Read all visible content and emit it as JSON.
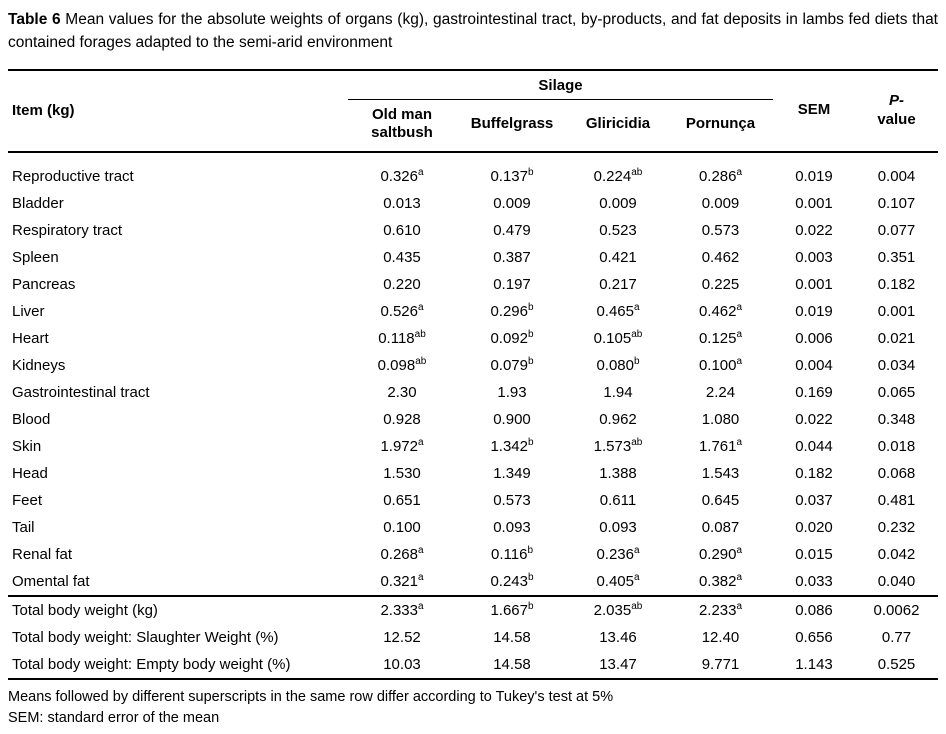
{
  "caption": {
    "label": "Table 6",
    "text": "Mean values for the absolute weights of organs (kg), gastrointestinal tract, by-products, and fat deposits in lambs fed diets that contained forages adapted to the semi-arid environment"
  },
  "table": {
    "item_header": "Item (kg)",
    "group_header": "Silage",
    "silage_columns": [
      "Old man saltbush",
      "Buffelgrass",
      "Gliricidia",
      "Pornunça"
    ],
    "sem_header": "SEM",
    "pvalue_header": {
      "line1": "P-",
      "line2": "value"
    },
    "rows": [
      {
        "item": "Reproductive tract",
        "values": [
          {
            "v": "0.326",
            "sup": "a"
          },
          {
            "v": "0.137",
            "sup": "b"
          },
          {
            "v": "0.224",
            "sup": "ab"
          },
          {
            "v": "0.286",
            "sup": "a"
          }
        ],
        "sem": "0.019",
        "p": "0.004"
      },
      {
        "item": "Bladder",
        "values": [
          {
            "v": "0.013"
          },
          {
            "v": "0.009"
          },
          {
            "v": "0.009"
          },
          {
            "v": "0.009"
          }
        ],
        "sem": "0.001",
        "p": "0.107"
      },
      {
        "item": "Respiratory tract",
        "values": [
          {
            "v": "0.610"
          },
          {
            "v": "0.479"
          },
          {
            "v": "0.523"
          },
          {
            "v": "0.573"
          }
        ],
        "sem": "0.022",
        "p": "0.077"
      },
      {
        "item": "Spleen",
        "values": [
          {
            "v": "0.435"
          },
          {
            "v": "0.387"
          },
          {
            "v": "0.421"
          },
          {
            "v": "0.462"
          }
        ],
        "sem": "0.003",
        "p": "0.351"
      },
      {
        "item": "Pancreas",
        "values": [
          {
            "v": "0.220"
          },
          {
            "v": "0.197"
          },
          {
            "v": "0.217"
          },
          {
            "v": "0.225"
          }
        ],
        "sem": "0.001",
        "p": "0.182"
      },
      {
        "item": "Liver",
        "values": [
          {
            "v": "0.526",
            "sup": "a"
          },
          {
            "v": "0.296",
            "sup": "b"
          },
          {
            "v": "0.465",
            "sup": "a"
          },
          {
            "v": "0.462",
            "sup": "a"
          }
        ],
        "sem": "0.019",
        "p": "0.001"
      },
      {
        "item": "Heart",
        "values": [
          {
            "v": "0.118",
            "sup": "ab"
          },
          {
            "v": "0.092",
            "sup": "b"
          },
          {
            "v": "0.105",
            "sup": "ab"
          },
          {
            "v": "0.125",
            "sup": "a"
          }
        ],
        "sem": "0.006",
        "p": "0.021"
      },
      {
        "item": "Kidneys",
        "values": [
          {
            "v": "0.098",
            "sup": "ab"
          },
          {
            "v": "0.079",
            "sup": "b"
          },
          {
            "v": "0.080",
            "sup": "b"
          },
          {
            "v": "0.100",
            "sup": "a"
          }
        ],
        "sem": "0.004",
        "p": "0.034"
      },
      {
        "item": "Gastrointestinal tract",
        "values": [
          {
            "v": "2.30"
          },
          {
            "v": "1.93"
          },
          {
            "v": "1.94"
          },
          {
            "v": "2.24"
          }
        ],
        "sem": "0.169",
        "p": "0.065"
      },
      {
        "item": "Blood",
        "values": [
          {
            "v": "0.928"
          },
          {
            "v": "0.900"
          },
          {
            "v": "0.962"
          },
          {
            "v": "1.080"
          }
        ],
        "sem": "0.022",
        "p": "0.348"
      },
      {
        "item": "Skin",
        "values": [
          {
            "v": "1.972",
            "sup": "a"
          },
          {
            "v": "1.342",
            "sup": "b"
          },
          {
            "v": "1.573",
            "sup": "ab"
          },
          {
            "v": "1.761",
            "sup": "a"
          }
        ],
        "sem": "0.044",
        "p": "0.018"
      },
      {
        "item": "Head",
        "values": [
          {
            "v": "1.530"
          },
          {
            "v": "1.349"
          },
          {
            "v": "1.388"
          },
          {
            "v": "1.543"
          }
        ],
        "sem": "0.182",
        "p": "0.068"
      },
      {
        "item": "Feet",
        "values": [
          {
            "v": "0.651"
          },
          {
            "v": "0.573"
          },
          {
            "v": "0.611"
          },
          {
            "v": "0.645"
          }
        ],
        "sem": "0.037",
        "p": "0.481"
      },
      {
        "item": "Tail",
        "values": [
          {
            "v": "0.100"
          },
          {
            "v": "0.093"
          },
          {
            "v": "0.093"
          },
          {
            "v": "0.087"
          }
        ],
        "sem": "0.020",
        "p": "0.232"
      },
      {
        "item": "Renal fat",
        "values": [
          {
            "v": "0.268",
            "sup": "a"
          },
          {
            "v": "0.116",
            "sup": "b"
          },
          {
            "v": "0.236",
            "sup": "a"
          },
          {
            "v": "0.290",
            "sup": "a"
          }
        ],
        "sem": "0.015",
        "p": "0.042"
      },
      {
        "item": "Omental fat",
        "values": [
          {
            "v": "0.321",
            "sup": "a"
          },
          {
            "v": "0.243",
            "sup": "b"
          },
          {
            "v": "0.405",
            "sup": "a"
          },
          {
            "v": "0.382",
            "sup": "a"
          }
        ],
        "sem": "0.033",
        "p": "0.040"
      }
    ],
    "totals_rows": [
      {
        "item": "Total body weight (kg)",
        "values": [
          {
            "v": "2.333",
            "sup": "a"
          },
          {
            "v": "1.667",
            "sup": "b"
          },
          {
            "v": "2.035",
            "sup": "ab"
          },
          {
            "v": "2.233",
            "sup": "a"
          }
        ],
        "sem": "0.086",
        "p": "0.0062"
      },
      {
        "item": "Total body weight: Slaughter Weight (%)",
        "values": [
          {
            "v": "12.52"
          },
          {
            "v": "14.58"
          },
          {
            "v": "13.46"
          },
          {
            "v": "12.40"
          }
        ],
        "sem": "0.656",
        "p": "0.77"
      },
      {
        "item": "Total body weight: Empty body weight (%)",
        "values": [
          {
            "v": "10.03"
          },
          {
            "v": "14.58"
          },
          {
            "v": "13.47"
          },
          {
            "v": "9.771"
          }
        ],
        "sem": "1.143",
        "p": "0.525"
      }
    ]
  },
  "footnotes": [
    "Means followed by different superscripts in the same row differ according to Tukey's test at 5%",
    "SEM: standard error of the mean"
  ]
}
